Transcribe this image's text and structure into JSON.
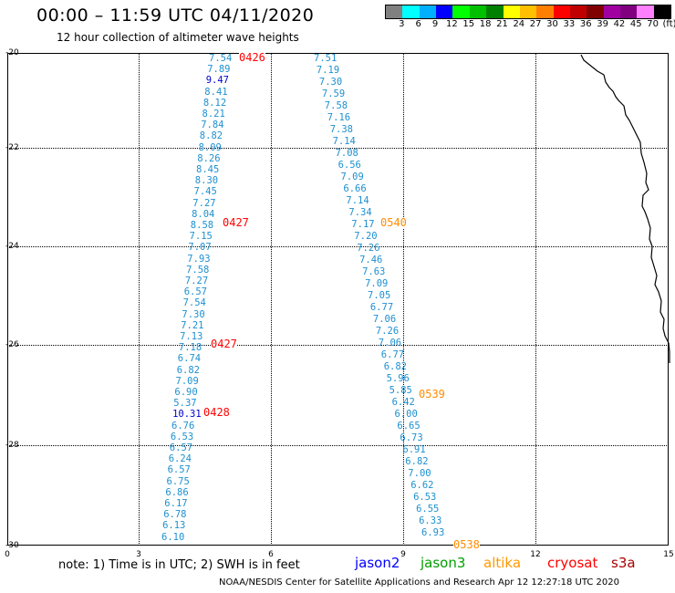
{
  "header": {
    "title": "00:00 – 11:59 UTC 04/11/2020",
    "subtitle": "12 hour collection of altimeter wave heights"
  },
  "scale": {
    "colors": [
      "#808080",
      "#00ffff",
      "#00b0ff",
      "#0000ff",
      "#00ff00",
      "#00c000",
      "#008000",
      "#ffff00",
      "#ffc000",
      "#ff8000",
      "#ff0000",
      "#c00000",
      "#800000",
      "#a000a0",
      "#800080",
      "#ff80ff",
      "#000000"
    ],
    "labels": [
      "3",
      "6",
      "9",
      "12",
      "15",
      "18",
      "21",
      "24",
      "27",
      "30",
      "33",
      "36",
      "39",
      "42",
      "45",
      "70",
      "(ft)"
    ]
  },
  "axes": {
    "yticks": [
      "-20",
      "-22",
      "-24",
      "-26",
      "-28",
      "-30"
    ],
    "xticks": [
      "0",
      "3",
      "6",
      "9",
      "12",
      "15"
    ]
  },
  "tracks": [
    {
      "name": "track-west",
      "rows": [
        [
          "7.54",
          ""
        ],
        [
          "7.89",
          ""
        ],
        [
          "9.47",
          "hi"
        ],
        [
          "8.41",
          ""
        ],
        [
          "8.12",
          ""
        ],
        [
          "8.21",
          ""
        ],
        [
          "7.84",
          ""
        ],
        [
          "8.82",
          ""
        ],
        [
          "8.09",
          ""
        ],
        [
          "8.26",
          ""
        ],
        [
          "8.45",
          ""
        ],
        [
          "8.30",
          ""
        ],
        [
          "7.45",
          ""
        ],
        [
          "7.27",
          ""
        ],
        [
          "8.04",
          ""
        ],
        [
          "8.58",
          ""
        ],
        [
          "7.15",
          ""
        ],
        [
          "7.07",
          ""
        ],
        [
          "7.93",
          ""
        ],
        [
          "7.58",
          ""
        ],
        [
          "7.27",
          ""
        ],
        [
          "6.57",
          ""
        ],
        [
          "7.54",
          ""
        ],
        [
          "7.30",
          ""
        ],
        [
          "7.21",
          ""
        ],
        [
          "7.13",
          ""
        ],
        [
          "7.18",
          ""
        ],
        [
          "6.74",
          ""
        ],
        [
          "6.82",
          ""
        ],
        [
          "7.09",
          ""
        ],
        [
          "6.90",
          ""
        ],
        [
          "5.37",
          ""
        ],
        [
          "10.31",
          "hi"
        ],
        [
          "6.76",
          ""
        ],
        [
          "6.53",
          ""
        ],
        [
          "6.57",
          ""
        ],
        [
          "6.24",
          ""
        ],
        [
          "6.57",
          ""
        ],
        [
          "6.75",
          ""
        ],
        [
          "6.86",
          ""
        ],
        [
          "6.17",
          ""
        ],
        [
          "6.78",
          ""
        ],
        [
          "6.13",
          ""
        ],
        [
          "6.10",
          ""
        ]
      ]
    },
    {
      "name": "track-east",
      "rows": [
        [
          "7.51",
          ""
        ],
        [
          "7.19",
          ""
        ],
        [
          "7.30",
          ""
        ],
        [
          "7.59",
          ""
        ],
        [
          "7.58",
          ""
        ],
        [
          "7.16",
          ""
        ],
        [
          "7.38",
          ""
        ],
        [
          "7.14",
          ""
        ],
        [
          "7.08",
          ""
        ],
        [
          "6.56",
          ""
        ],
        [
          "7.09",
          ""
        ],
        [
          "6.66",
          ""
        ],
        [
          "7.14",
          ""
        ],
        [
          "7.34",
          ""
        ],
        [
          "7.17",
          ""
        ],
        [
          "7.20",
          ""
        ],
        [
          "7.26",
          ""
        ],
        [
          "7.46",
          ""
        ],
        [
          "7.63",
          ""
        ],
        [
          "7.09",
          ""
        ],
        [
          "7.05",
          ""
        ],
        [
          "6.77",
          ""
        ],
        [
          "7.06",
          ""
        ],
        [
          "7.26",
          ""
        ],
        [
          "7.06",
          ""
        ],
        [
          "6.77",
          ""
        ],
        [
          "6.82",
          ""
        ],
        [
          "5.96",
          ""
        ],
        [
          "5.85",
          ""
        ],
        [
          "6.42",
          ""
        ],
        [
          "6.00",
          ""
        ],
        [
          "6.65",
          ""
        ],
        [
          "6.73",
          ""
        ],
        [
          "6.91",
          ""
        ],
        [
          "6.82",
          ""
        ],
        [
          "7.00",
          ""
        ],
        [
          "6.62",
          ""
        ],
        [
          "6.53",
          ""
        ],
        [
          "6.55",
          ""
        ],
        [
          "6.33",
          ""
        ],
        [
          "6.93",
          ""
        ]
      ]
    }
  ],
  "passes": [
    {
      "label": "0426",
      "color": "red"
    },
    {
      "label": "0427",
      "color": "red"
    },
    {
      "label": "0427",
      "color": "red"
    },
    {
      "label": "0428",
      "color": "red"
    },
    {
      "label": "0540",
      "color": "orange"
    },
    {
      "label": "0539",
      "color": "orange"
    },
    {
      "label": "0538",
      "color": "orange"
    }
  ],
  "note": "note:  1) Time is in UTC;  2) SWH is in feet",
  "legend": [
    {
      "label": "jason2",
      "color": "#0000ff"
    },
    {
      "label": "jason3",
      "color": "#00a000"
    },
    {
      "label": "altika",
      "color": "#ff9900"
    },
    {
      "label": "cryosat",
      "color": "#ff0000"
    },
    {
      "label": "s3a",
      "color": "#aa0000"
    }
  ],
  "credit": "NOAA/NESDIS Center for Satellite Applications and Research     Apr 12 12:27:18 UTC 2020"
}
